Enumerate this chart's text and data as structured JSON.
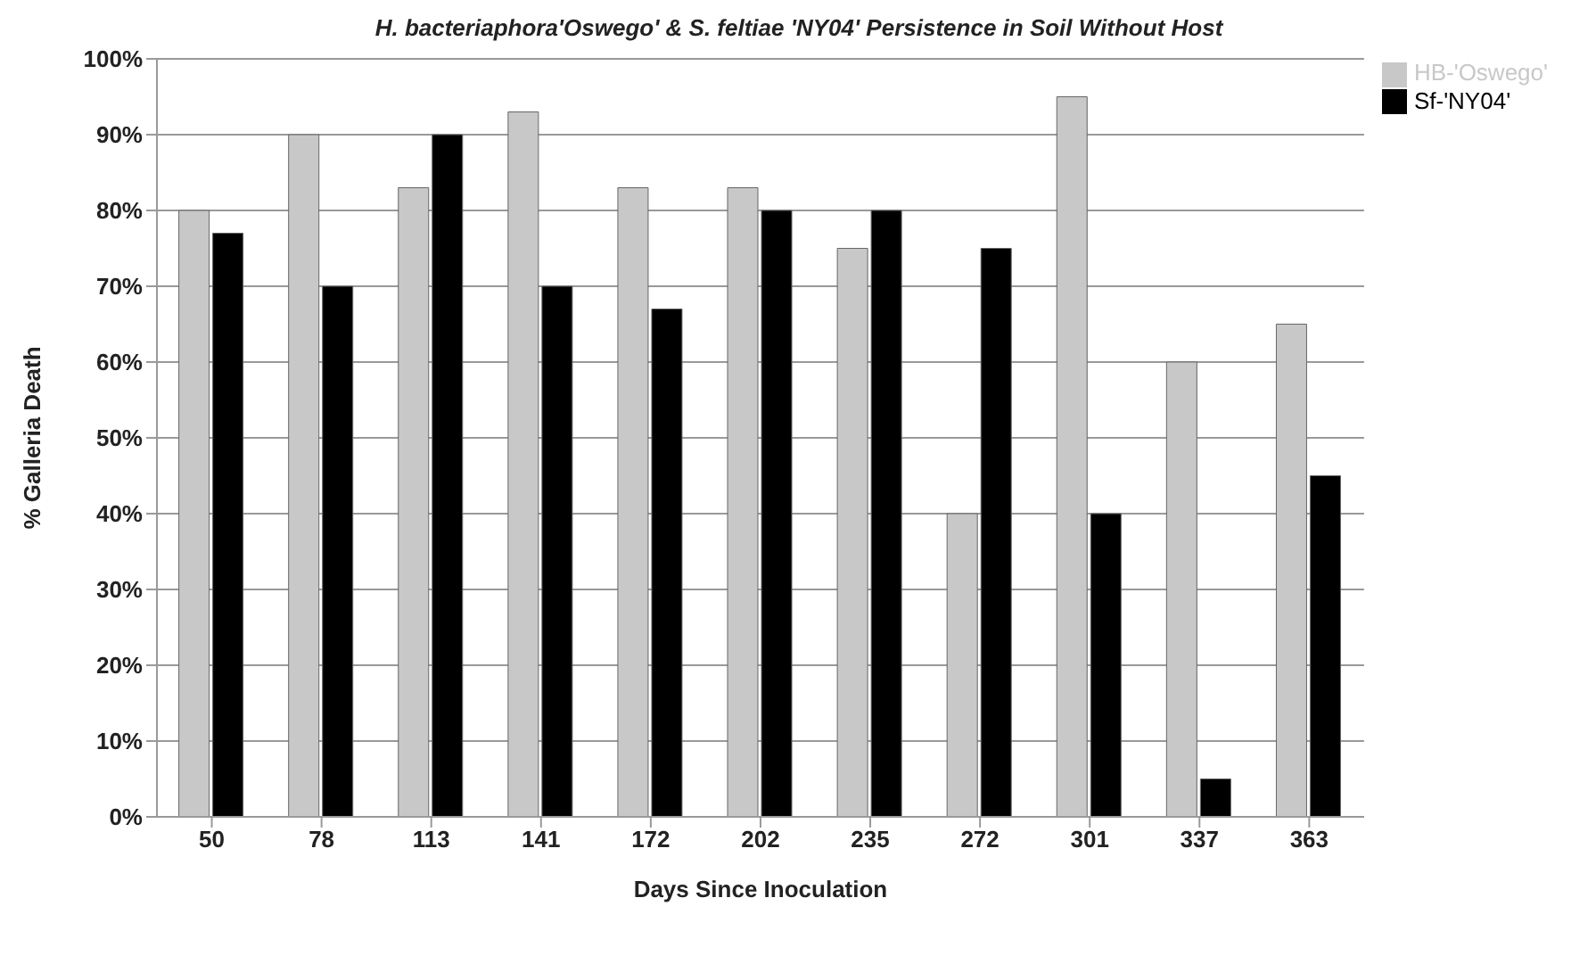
{
  "chart_data": {
    "type": "bar",
    "title": "H. bacteriaphora'Oswego' & S. feltiae 'NY04' Persistence in Soil Without Host",
    "xlabel": "Days Since Inoculation",
    "ylabel": "% Galleria Death",
    "categories": [
      "50",
      "78",
      "113",
      "141",
      "172",
      "202",
      "235",
      "272",
      "301",
      "337",
      "363"
    ],
    "series": [
      {
        "name": "HB-'Oswego'",
        "color": "#c8c8c8",
        "values": [
          80,
          90,
          83,
          93,
          83,
          83,
          75,
          40,
          95,
          60,
          65
        ]
      },
      {
        "name": "Sf-'NY04'",
        "color": "#000000",
        "values": [
          77,
          70,
          90,
          70,
          67,
          80,
          80,
          75,
          40,
          5,
          45
        ]
      }
    ],
    "ylim": [
      0,
      100
    ],
    "yticks": [
      {
        "value": 0,
        "label": "0%"
      },
      {
        "value": 10,
        "label": "10%"
      },
      {
        "value": 20,
        "label": "20%"
      },
      {
        "value": 30,
        "label": "30%"
      },
      {
        "value": 40,
        "label": "40%"
      },
      {
        "value": 50,
        "label": "50%"
      },
      {
        "value": 60,
        "label": "60%"
      },
      {
        "value": 70,
        "label": "70%"
      },
      {
        "value": 80,
        "label": "80%"
      },
      {
        "value": 90,
        "label": "90%"
      },
      {
        "value": 100,
        "label": "100%"
      }
    ],
    "grid": "y",
    "legend": "top right"
  }
}
